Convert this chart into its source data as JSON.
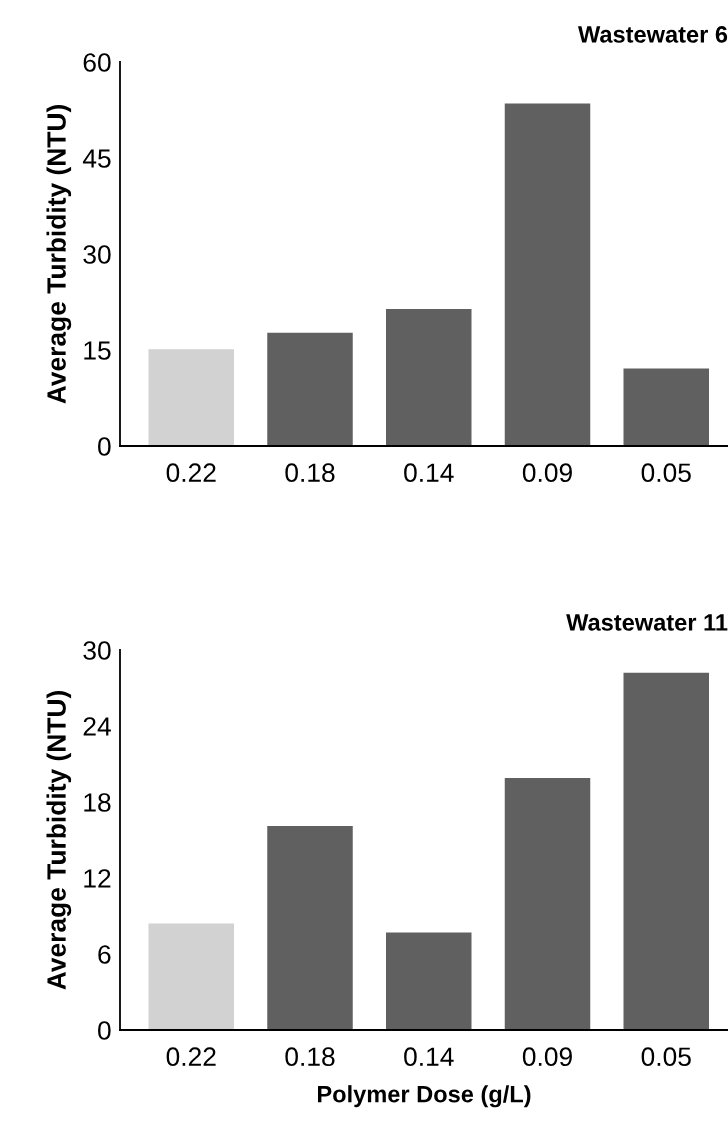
{
  "chart_data": [
    {
      "type": "bar",
      "title": "Wastewater 6",
      "ylabel": "Average Turbidity (NTU)",
      "categories": [
        "0.22",
        "0.18",
        "0.14",
        "0.09",
        "0.05"
      ],
      "values": [
        15.1,
        17.7,
        21.4,
        53.5,
        12.1
      ],
      "colors": [
        "#d2d2d2",
        "#606060",
        "#606060",
        "#606060",
        "#606060"
      ],
      "ylim": [
        0,
        60
      ],
      "yticks": [
        0,
        15,
        30,
        45,
        60
      ],
      "grid": false
    },
    {
      "type": "bar",
      "title": "Wastewater 11",
      "ylabel": "Average Turbidity (NTU)",
      "xlabel": "Polymer Dose (g/L)",
      "categories": [
        "0.22",
        "0.18",
        "0.14",
        "0.09",
        "0.05"
      ],
      "values": [
        8.4,
        16.1,
        7.7,
        19.9,
        28.2
      ],
      "colors": [
        "#d2d2d2",
        "#606060",
        "#606060",
        "#606060",
        "#606060"
      ],
      "ylim": [
        0,
        30
      ],
      "yticks": [
        0,
        6,
        12,
        18,
        24,
        30
      ],
      "grid": false
    }
  ]
}
